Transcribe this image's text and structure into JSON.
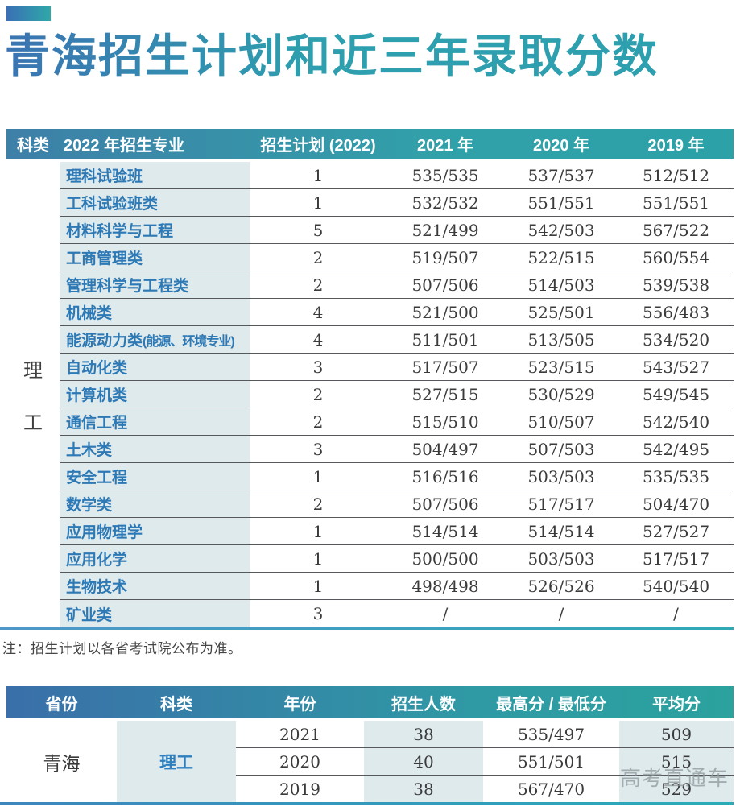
{
  "title": "青海招生计划和近三年录取分数",
  "note": "注：招生计划以各省考试院公布为准。",
  "watermark": "高考直通车",
  "colors": {
    "accent_blue": "#3a6fb5",
    "accent_teal": "#2fa8a8",
    "header_gradient_left": "#3e7fa8",
    "header_gradient_right": "#2ca1a8",
    "major_text_blue": "#2d79b5",
    "light_cell_bg": "#dfeaec"
  },
  "table1": {
    "headers": [
      "科类",
      "2022 年招生专业",
      "招生计划 (2022)",
      "2021 年",
      "2020 年",
      "2019 年"
    ],
    "category_vertical": [
      "理",
      "工"
    ],
    "rows": [
      {
        "major": "理科试验班",
        "plan": "1",
        "y2021": "535/535",
        "y2020": "537/537",
        "y2019": "512/512"
      },
      {
        "major": "工科试验班类",
        "plan": "1",
        "y2021": "532/532",
        "y2020": "551/551",
        "y2019": "551/551"
      },
      {
        "major": "材料科学与工程",
        "plan": "5",
        "y2021": "521/499",
        "y2020": "542/503",
        "y2019": "567/522"
      },
      {
        "major": "工商管理类",
        "plan": "2",
        "y2021": "519/507",
        "y2020": "522/515",
        "y2019": "560/554"
      },
      {
        "major": "管理科学与工程类",
        "plan": "2",
        "y2021": "507/506",
        "y2020": "514/503",
        "y2019": "539/538"
      },
      {
        "major": "机械类",
        "plan": "4",
        "y2021": "521/500",
        "y2020": "525/501",
        "y2019": "556/483"
      },
      {
        "major": "能源动力类",
        "major_note": "(能源、环境专业)",
        "plan": "4",
        "y2021": "511/501",
        "y2020": "513/505",
        "y2019": "534/520"
      },
      {
        "major": "自动化类",
        "plan": "3",
        "y2021": "517/507",
        "y2020": "523/515",
        "y2019": "543/527"
      },
      {
        "major": "计算机类",
        "plan": "2",
        "y2021": "527/515",
        "y2020": "530/529",
        "y2019": "549/545"
      },
      {
        "major": "通信工程",
        "plan": "2",
        "y2021": "515/510",
        "y2020": "510/507",
        "y2019": "542/540"
      },
      {
        "major": "土木类",
        "plan": "3",
        "y2021": "504/497",
        "y2020": "507/503",
        "y2019": "542/495"
      },
      {
        "major": "安全工程",
        "plan": "1",
        "y2021": "516/516",
        "y2020": "503/503",
        "y2019": "535/535"
      },
      {
        "major": "数学类",
        "plan": "2",
        "y2021": "507/506",
        "y2020": "517/517",
        "y2019": "504/470"
      },
      {
        "major": "应用物理学",
        "plan": "1",
        "y2021": "514/514",
        "y2020": "514/514",
        "y2019": "527/527"
      },
      {
        "major": "应用化学",
        "plan": "1",
        "y2021": "500/500",
        "y2020": "503/503",
        "y2019": "517/517"
      },
      {
        "major": "生物技术",
        "plan": "1",
        "y2021": "498/498",
        "y2020": "526/526",
        "y2019": "540/540"
      },
      {
        "major": "矿业类",
        "plan": "3",
        "y2021": "/",
        "y2020": "/",
        "y2019": "/"
      }
    ]
  },
  "table2": {
    "headers": [
      "省份",
      "科类",
      "年份",
      "招生人数",
      "最高分 / 最低分",
      "平均分"
    ],
    "province": "青海",
    "category": "理工",
    "rows": [
      {
        "year": "2021",
        "count": "38",
        "hi_lo": "535/497",
        "avg": "509"
      },
      {
        "year": "2020",
        "count": "40",
        "hi_lo": "551/501",
        "avg": "515"
      },
      {
        "year": "2019",
        "count": "38",
        "hi_lo": "567/470",
        "avg": "529"
      }
    ]
  }
}
